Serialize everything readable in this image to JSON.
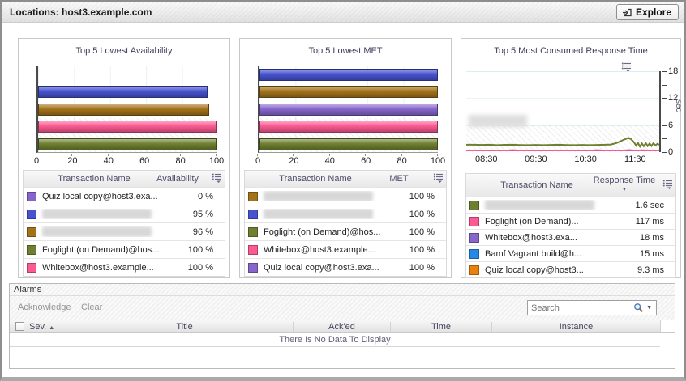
{
  "window": {
    "title": "Locations: host3.example.com",
    "explore_button": "Explore"
  },
  "panels": [
    {
      "title": "Top 5 Lowest Availability",
      "chart": {
        "type": "bar",
        "xlim": [
          0,
          100
        ],
        "xticks": [
          0,
          20,
          40,
          60,
          80,
          100
        ],
        "bars": [
          {
            "color": "#8766cc",
            "value": 0
          },
          {
            "color": "#4753cf",
            "value": 95
          },
          {
            "color": "#a3731a",
            "value": 96
          },
          {
            "color": "#fb5a92",
            "value": 100
          },
          {
            "color": "#6e7f2f",
            "value": 100
          }
        ]
      },
      "table": {
        "name_header": "Transaction Name",
        "value_header": "Availability",
        "rows": [
          {
            "color": "#8766cc",
            "name": "Quiz local copy@host3.exa...",
            "value": "0 %",
            "redacted": false
          },
          {
            "color": "#4753cf",
            "name": "",
            "value": "95 %",
            "redacted": true
          },
          {
            "color": "#a3731a",
            "name": "",
            "value": "96 %",
            "redacted": true
          },
          {
            "color": "#6e7f2f",
            "name": "Foglight (on Demand)@hos...",
            "value": "100 %",
            "redacted": false
          },
          {
            "color": "#fb5a92",
            "name": "Whitebox@host3.example...",
            "value": "100 %",
            "redacted": false
          }
        ]
      }
    },
    {
      "title": "Top 5 Lowest MET",
      "chart": {
        "type": "bar",
        "xlim": [
          0,
          100
        ],
        "xticks": [
          0,
          20,
          40,
          60,
          80,
          100
        ],
        "bars": [
          {
            "color": "#4753cf",
            "value": 100
          },
          {
            "color": "#a3731a",
            "value": 100
          },
          {
            "color": "#8766cc",
            "value": 100
          },
          {
            "color": "#fb5a92",
            "value": 100
          },
          {
            "color": "#6e7f2f",
            "value": 100
          }
        ]
      },
      "table": {
        "name_header": "Transaction Name",
        "value_header": "MET",
        "rows": [
          {
            "color": "#a3731a",
            "name": "",
            "value": "100 %",
            "redacted": true
          },
          {
            "color": "#4753cf",
            "name": "",
            "value": "100 %",
            "redacted": true
          },
          {
            "color": "#6e7f2f",
            "name": "Foglight (on Demand)@hos...",
            "value": "100 %",
            "redacted": false
          },
          {
            "color": "#fb5a92",
            "name": "Whitebox@host3.example...",
            "value": "100 %",
            "redacted": false
          },
          {
            "color": "#8766cc",
            "name": "Quiz local copy@host3.exa...",
            "value": "100 %",
            "redacted": false
          }
        ]
      }
    },
    {
      "title": "Top 5 Most Consumed Response Time",
      "chart": {
        "type": "line",
        "ylabel": "sec",
        "ylim": [
          0,
          18
        ],
        "yticks": [
          0,
          6,
          12,
          18
        ],
        "threshold_band": [
          0,
          6
        ],
        "xticks": [
          {
            "label": "08:30",
            "pos": 0.103
          },
          {
            "label": "09:30",
            "pos": 0.358
          },
          {
            "label": "10:30",
            "pos": 0.613
          },
          {
            "label": "11:30",
            "pos": 0.868
          }
        ],
        "series": [
          {
            "color": "#6e7f2f",
            "points": [
              [
                0,
                1.5
              ],
              [
                0.04,
                1.5
              ],
              [
                0.08,
                1.45
              ],
              [
                0.12,
                1.5
              ],
              [
                0.16,
                1.42
              ],
              [
                0.2,
                1.47
              ],
              [
                0.24,
                1.5
              ],
              [
                0.28,
                1.44
              ],
              [
                0.32,
                1.4
              ],
              [
                0.36,
                1.45
              ],
              [
                0.4,
                1.42
              ],
              [
                0.44,
                1.46
              ],
              [
                0.48,
                1.5
              ],
              [
                0.52,
                1.44
              ],
              [
                0.56,
                1.4
              ],
              [
                0.6,
                1.45
              ],
              [
                0.64,
                1.42
              ],
              [
                0.68,
                1.46
              ],
              [
                0.72,
                1.5
              ],
              [
                0.75,
                1.55
              ],
              [
                0.78,
                1.9
              ],
              [
                0.81,
                2.5
              ],
              [
                0.84,
                3.05
              ],
              [
                0.855,
                2.7
              ],
              [
                0.87,
                2.0
              ],
              [
                0.88,
                1.3
              ],
              [
                0.89,
                1.9
              ],
              [
                0.9,
                1.1
              ],
              [
                0.91,
                1.8
              ],
              [
                0.92,
                1.15
              ],
              [
                0.93,
                1.85
              ],
              [
                0.94,
                1.2
              ],
              [
                0.95,
                1.8
              ],
              [
                0.96,
                1.25
              ],
              [
                0.97,
                1.85
              ],
              [
                0.98,
                1.35
              ],
              [
                0.99,
                1.7
              ],
              [
                1,
                1.5
              ]
            ]
          },
          {
            "color": "#fb5a92",
            "points": [
              [
                0,
                0.15
              ],
              [
                0.08,
                0.12
              ],
              [
                0.16,
                0.18
              ],
              [
                0.2,
                0.12
              ],
              [
                0.24,
                0.3
              ],
              [
                0.28,
                0.15
              ],
              [
                0.36,
                0.12
              ],
              [
                0.42,
                0.22
              ],
              [
                0.48,
                0.12
              ],
              [
                0.56,
                0.15
              ],
              [
                0.62,
                0.12
              ],
              [
                0.68,
                0.28
              ],
              [
                0.74,
                0.15
              ],
              [
                0.8,
                0.12
              ],
              [
                0.84,
                0.3
              ],
              [
                0.88,
                0.18
              ],
              [
                0.92,
                0.25
              ],
              [
                0.96,
                0.15
              ],
              [
                1,
                0.2
              ]
            ]
          },
          {
            "color": "#8766cc",
            "points": [
              [
                0,
                0.06
              ],
              [
                0.2,
                0.08
              ],
              [
                0.4,
                0.05
              ],
              [
                0.6,
                0.08
              ],
              [
                0.8,
                0.05
              ],
              [
                1,
                0.07
              ]
            ]
          }
        ]
      },
      "table": {
        "name_header": "Transaction Name",
        "value_header": "Response Time",
        "sorted": "desc",
        "rows": [
          {
            "color": "#6e7f2f",
            "name": "",
            "value": "1.6 sec",
            "redacted": true
          },
          {
            "color": "#fb5a92",
            "name": "Foglight (on Demand)...",
            "value": "117 ms",
            "redacted": false
          },
          {
            "color": "#8766cc",
            "name": "Whitebox@host3.exa...",
            "value": "18 ms",
            "redacted": false
          },
          {
            "color": "#2388e8",
            "name": "Bamf Vagrant build@h...",
            "value": "15 ms",
            "redacted": false
          },
          {
            "color": "#e8820c",
            "name": "Quiz local copy@host3...",
            "value": "9.3 ms",
            "redacted": false
          }
        ]
      }
    }
  ],
  "alarms": {
    "title": "Alarms",
    "toolbar": {
      "acknowledge": "Acknowledge",
      "clear": "Clear",
      "search_placeholder": "Search"
    },
    "columns": {
      "sev": "Sev.",
      "title": "Title",
      "acked": "Ack'ed",
      "time": "Time",
      "instance": "Instance"
    },
    "sev_sort": "asc",
    "empty_message": "There Is No Data To Display"
  }
}
